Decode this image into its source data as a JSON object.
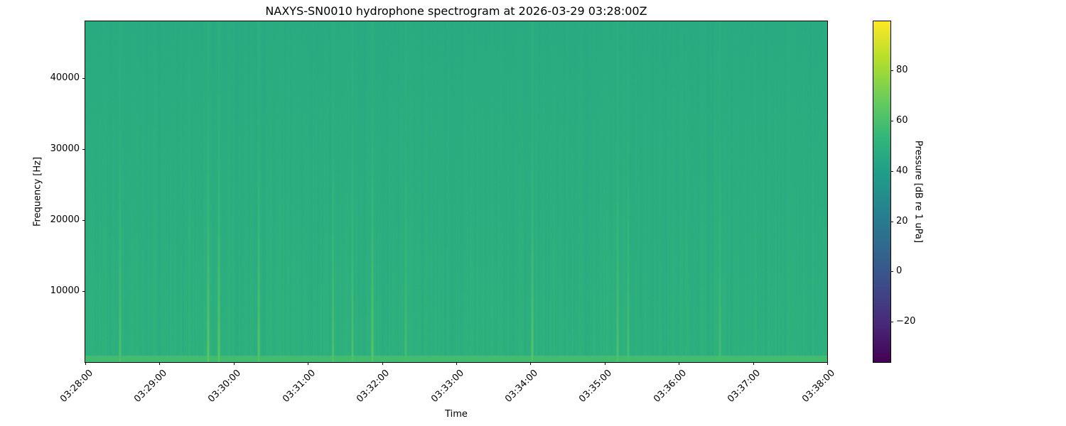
{
  "chart_data": {
    "type": "heatmap",
    "title": "NAXYS-SN0010 hydrophone spectrogram at 2026-03-29 03:28:00Z",
    "xlabel": "Time",
    "ylabel": "Frequency [Hz]",
    "colorbar_label": "Pressure [dB re 1 uPa]",
    "colormap": "viridis",
    "x_range": [
      "03:28:00",
      "03:38:00"
    ],
    "x_ticks": [
      "03:28:00",
      "03:29:00",
      "03:30:00",
      "03:31:00",
      "03:32:00",
      "03:33:00",
      "03:34:00",
      "03:35:00",
      "03:36:00",
      "03:37:00",
      "03:38:00"
    ],
    "ylim": [
      0,
      48000
    ],
    "y_ticks": [
      10000,
      20000,
      30000,
      40000
    ],
    "clim": [
      -36,
      99.5
    ],
    "colorbar_ticks": [
      -20,
      0,
      20,
      40,
      60,
      80
    ],
    "background_level_db": 47,
    "low_frequency_band": {
      "max_hz": 1000,
      "level_db": 58
    },
    "broadband_events": [
      {
        "time": "03:28:28",
        "peak_db": 62
      },
      {
        "time": "03:29:39",
        "peak_db": 66
      },
      {
        "time": "03:29:48",
        "peak_db": 66
      },
      {
        "time": "03:30:20",
        "peak_db": 64
      },
      {
        "time": "03:31:20",
        "peak_db": 66
      },
      {
        "time": "03:31:36",
        "peak_db": 62
      },
      {
        "time": "03:31:52",
        "peak_db": 65
      },
      {
        "time": "03:32:19",
        "peak_db": 60
      },
      {
        "time": "03:34:01",
        "peak_db": 64
      },
      {
        "time": "03:35:10",
        "peak_db": 62
      },
      {
        "time": "03:35:19",
        "peak_db": 60
      },
      {
        "time": "03:36:33",
        "peak_db": 60
      }
    ],
    "grid": false
  }
}
